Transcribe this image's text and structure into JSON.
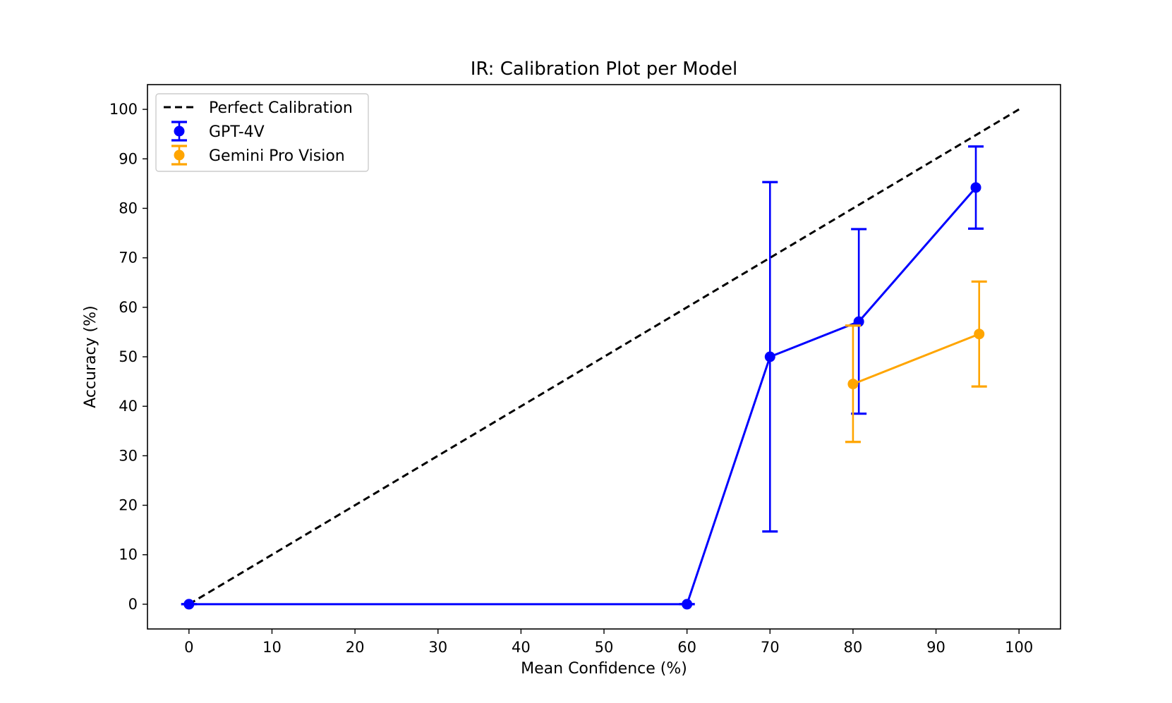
{
  "chart_data": {
    "type": "line",
    "title": "IR: Calibration Plot per Model",
    "xlabel": "Mean Confidence (%)",
    "ylabel": "Accuracy (%)",
    "xlim": [
      -5,
      105
    ],
    "ylim": [
      -5,
      105
    ],
    "xticks": [
      "0",
      "10",
      "20",
      "30",
      "40",
      "50",
      "60",
      "70",
      "80",
      "90",
      "100"
    ],
    "yticks": [
      "0",
      "10",
      "20",
      "30",
      "40",
      "50",
      "60",
      "70",
      "80",
      "90",
      "100"
    ],
    "grid": false,
    "legend_position": "top-left",
    "reference_line": {
      "name": "Perfect Calibration",
      "x": [
        0,
        100
      ],
      "y": [
        0,
        100
      ],
      "color": "#000000",
      "style": "dashed"
    },
    "series": [
      {
        "name": "GPT-4V",
        "color": "#0000ff",
        "x": [
          0,
          60,
          70,
          80.7,
          94.8
        ],
        "y": [
          0,
          0,
          50,
          57.1,
          84.2
        ],
        "err_low": [
          0,
          0,
          14.7,
          38.5,
          75.9
        ],
        "err_high": [
          0,
          0,
          85.3,
          75.8,
          92.5
        ]
      },
      {
        "name": "Gemini Pro Vision",
        "color": "#ffa500",
        "x": [
          80,
          95.2
        ],
        "y": [
          44.5,
          54.6
        ],
        "err_low": [
          32.8,
          44
        ],
        "err_high": [
          56.3,
          65.2
        ]
      }
    ]
  }
}
